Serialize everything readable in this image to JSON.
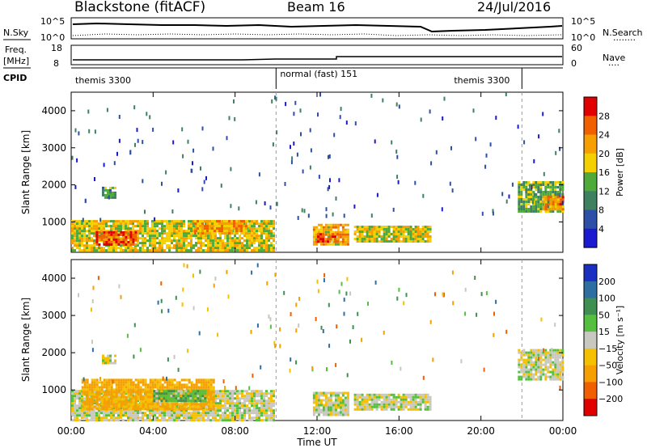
{
  "header": {
    "station": "Blackstone (fitACF)",
    "beam": "Beam 16",
    "date": "24/Jul/2016"
  },
  "nsky_panel": {
    "left_label": "N.Sky",
    "left_ticks": [
      "10^5",
      "10^0"
    ],
    "right_ticks": [
      "10^5",
      "10^0"
    ],
    "right_label": "N.Search",
    "right_legend": "........"
  },
  "freq_panel": {
    "left_label_1": "Freq.",
    "left_label_2": "[MHz]",
    "left_ticks": [
      "18",
      "8"
    ],
    "right_ticks": [
      "60",
      "0"
    ],
    "right_label": "Nave",
    "right_legend": "...."
  },
  "cpid_panel": {
    "label": "CPID",
    "modes": [
      {
        "name": "themis 3300",
        "start": 0,
        "end": 10
      },
      {
        "name": "normal (fast) 151",
        "start": 10,
        "end": 22
      },
      {
        "name": "themis 3300",
        "start": 22,
        "end": 24
      }
    ]
  },
  "x_axis": {
    "label": "Time UT",
    "ticks": [
      "00:00",
      "04:00",
      "08:00",
      "12:00",
      "16:00",
      "20:00",
      "00:00"
    ]
  },
  "power_cbar": {
    "title": "Power [dB]",
    "tick_labels": [
      "4",
      "8",
      "12",
      "16",
      "20",
      "24",
      "28"
    ],
    "colors": [
      "#1a1ad0",
      "#2e4fa8",
      "#3f8060",
      "#4faa3a",
      "#f5d000",
      "#f5a000",
      "#f06000",
      "#e00000"
    ]
  },
  "velocity_cbar": {
    "title": "Velocity [m s⁻¹]",
    "tick_labels": [
      "200",
      "100",
      "50",
      "15",
      "−15",
      "−50",
      "−100",
      "−200"
    ],
    "colors": [
      "#1a2fc0",
      "#2f6ea0",
      "#3f9050",
      "#55c040",
      "#c8c8c0",
      "#f5c000",
      "#f5a000",
      "#f06000",
      "#e00000"
    ]
  },
  "chart_data": [
    {
      "type": "heatmap",
      "title": "",
      "xlabel": "Time UT",
      "ylabel": "Slant Range [km]",
      "xlim": [
        0,
        24
      ],
      "ylim": [
        180,
        4500
      ],
      "yticks": [
        1000,
        2000,
        3000,
        4000
      ],
      "colorbar": "Power [dB]",
      "regions": [
        {
          "t0": 0.0,
          "t1": 9.9,
          "r0": 200,
          "r1": 1050,
          "value": 18
        },
        {
          "t0": 1.2,
          "t1": 3.2,
          "r0": 400,
          "r1": 750,
          "value": 27
        },
        {
          "t0": 6.0,
          "t1": 8.5,
          "r0": 700,
          "r1": 1050,
          "value": 22
        },
        {
          "t0": 1.5,
          "t1": 2.1,
          "r0": 1650,
          "r1": 1950,
          "value": 12
        },
        {
          "t0": 11.8,
          "t1": 13.5,
          "r0": 400,
          "r1": 950,
          "value": 20
        },
        {
          "t0": 12.0,
          "t1": 13.0,
          "r0": 450,
          "r1": 700,
          "value": 27
        },
        {
          "t0": 13.8,
          "t1": 17.5,
          "r0": 500,
          "r1": 900,
          "value": 18
        },
        {
          "t0": 21.8,
          "t1": 24.0,
          "r0": 1300,
          "r1": 2100,
          "value": 14
        },
        {
          "t0": 23.0,
          "t1": 24.0,
          "r0": 1350,
          "r1": 1700,
          "value": 24
        }
      ]
    },
    {
      "type": "heatmap",
      "title": "",
      "xlabel": "Time UT",
      "ylabel": "Slant Range [km]",
      "xlim": [
        0,
        24
      ],
      "ylim": [
        180,
        4500
      ],
      "yticks": [
        1000,
        2000,
        3000,
        4000
      ],
      "colorbar": "Velocity [m s⁻¹]",
      "regions": [
        {
          "t0": 0.0,
          "t1": 9.9,
          "r0": 200,
          "r1": 1000,
          "value": 0
        },
        {
          "t0": 0.5,
          "t1": 7.0,
          "r0": 500,
          "r1": 1300,
          "value": -60
        },
        {
          "t0": 4.0,
          "t1": 6.5,
          "r0": 700,
          "r1": 1000,
          "value": 40
        },
        {
          "t0": 1.5,
          "t1": 2.1,
          "r0": 1700,
          "r1": 1950,
          "value": 0
        },
        {
          "t0": 11.8,
          "t1": 13.5,
          "r0": 300,
          "r1": 950,
          "value": 0
        },
        {
          "t0": 13.8,
          "t1": 17.5,
          "r0": 500,
          "r1": 900,
          "value": 0
        },
        {
          "t0": 21.8,
          "t1": 24.0,
          "r0": 1300,
          "r1": 2100,
          "value": 0
        }
      ]
    }
  ]
}
